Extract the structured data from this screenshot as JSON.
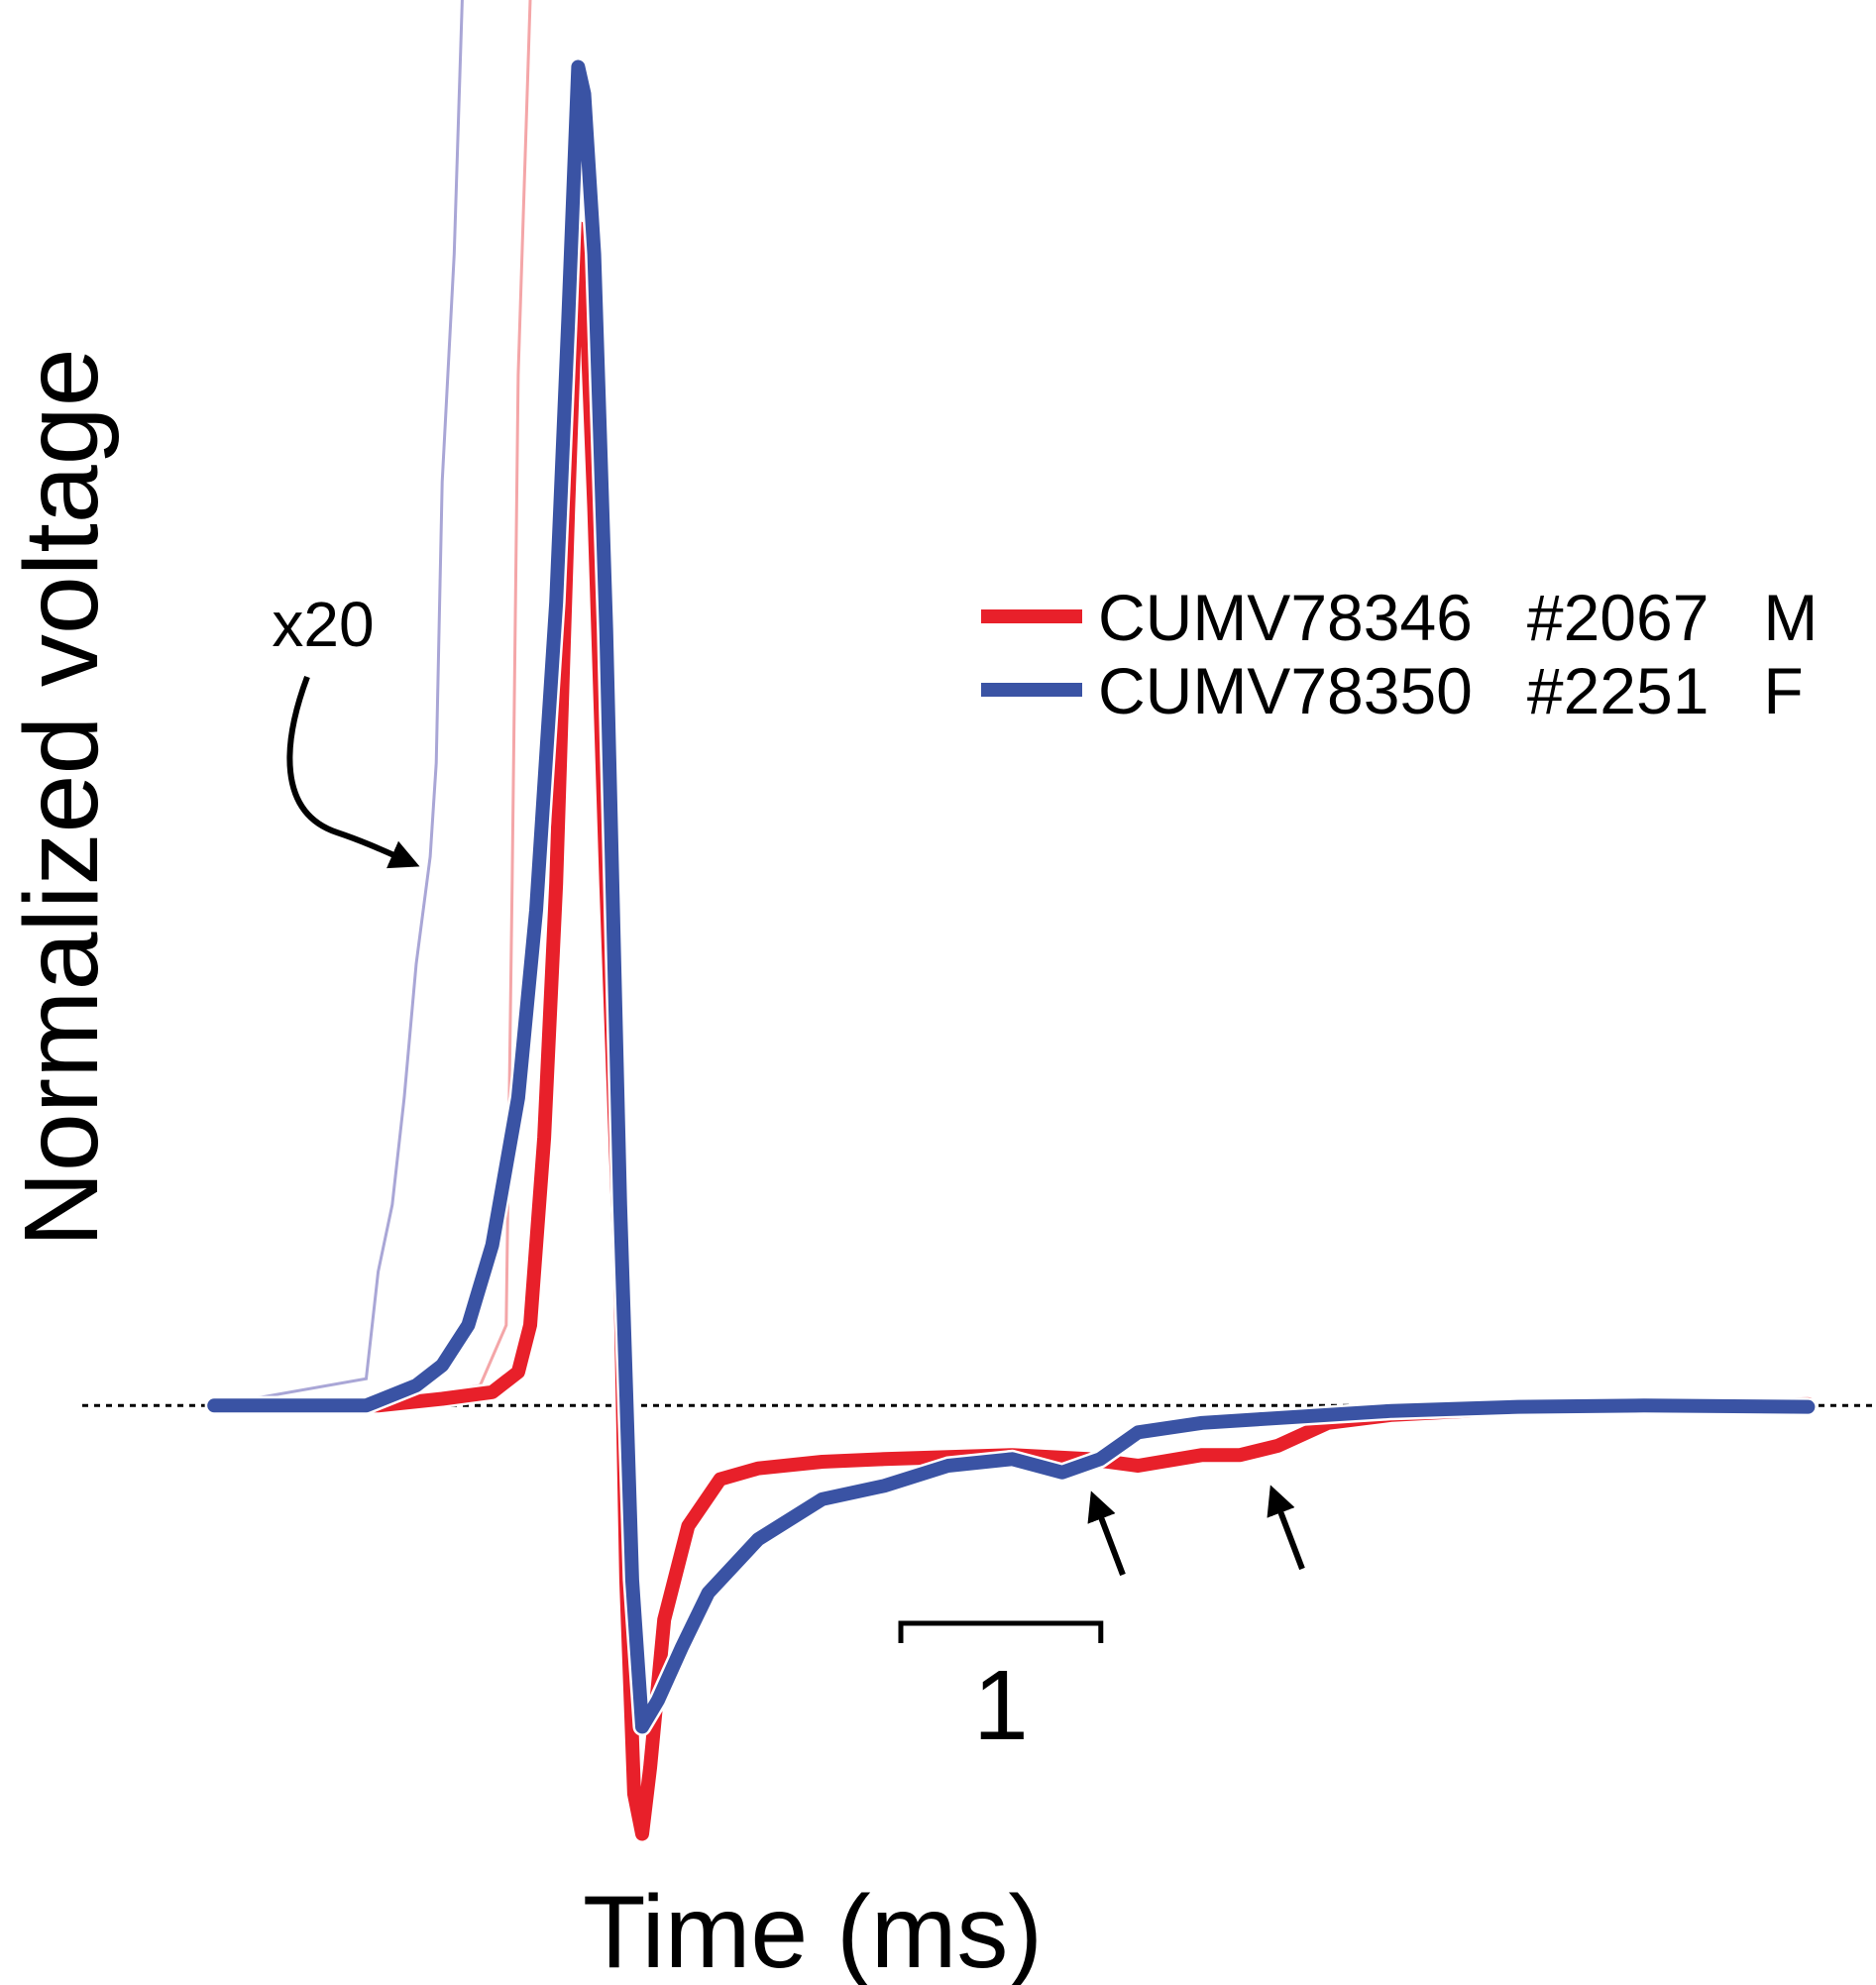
{
  "chart_data": {
    "type": "line",
    "xlabel": "Time (ms)",
    "ylabel": "Normalized voltage",
    "xlim": [
      -0.66,
      8.31
    ],
    "ylim": [
      -0.33,
      1.05
    ],
    "baseline": true,
    "annotation": "x20",
    "scale_bar": 1,
    "legend": "upper right",
    "series": [
      {
        "name": "CUMV78346   #2067   M",
        "color": "#e8202a",
        "x": [
          0,
          0.82,
          1.14,
          1.39,
          1.52,
          1.58,
          1.65,
          1.71,
          1.77,
          1.82,
          1.85,
          1.9,
          1.96,
          2.03,
          2.06,
          2.1,
          2.14,
          2.18,
          2.25,
          2.37,
          2.53,
          2.72,
          3.04,
          3.35,
          3.99,
          4.37,
          4.62,
          4.94,
          5.13,
          5.32,
          5.57,
          5.89,
          6.52,
          7.15,
          7.97
        ],
        "values": [
          0,
          0,
          0.005,
          0.01,
          0.025,
          0.06,
          0.2,
          0.39,
          0.67,
          0.88,
          0.86,
          0.67,
          0.39,
          0.1,
          -0.13,
          -0.29,
          -0.32,
          -0.27,
          -0.16,
          -0.09,
          -0.055,
          -0.047,
          -0.042,
          -0.04,
          -0.037,
          -0.04,
          -0.045,
          -0.037,
          -0.037,
          -0.03,
          -0.013,
          -0.007,
          -0.002,
          -0.001,
          0.001
        ]
      },
      {
        "name": "CUMV78350   #2251   F",
        "color": "#3a53a4",
        "x": [
          0,
          0.76,
          1.01,
          1.14,
          1.27,
          1.39,
          1.52,
          1.61,
          1.71,
          1.77,
          1.82,
          1.85,
          1.9,
          1.96,
          2.03,
          2.06,
          2.09,
          2.14,
          2.22,
          2.34,
          2.47,
          2.72,
          3.04,
          3.35,
          3.67,
          3.99,
          4.24,
          4.43,
          4.62,
          4.94,
          5.25,
          5.89,
          6.52,
          7.15,
          7.97
        ],
        "values": [
          0,
          0,
          0.015,
          0.03,
          0.06,
          0.12,
          0.23,
          0.37,
          0.6,
          0.81,
          1,
          0.98,
          0.86,
          0.58,
          0.15,
          0.01,
          -0.13,
          -0.24,
          -0.22,
          -0.18,
          -0.14,
          -0.1,
          -0.07,
          -0.06,
          -0.045,
          -0.04,
          -0.05,
          -0.04,
          -0.02,
          -0.013,
          -0.01,
          -0.004,
          -0.001,
          0,
          -0.001
        ]
      }
    ],
    "traces_x20": [
      {
        "color": "#f4a6a8",
        "x": [
          0,
          0.76,
          1.33,
          1.46,
          1.49,
          1.52,
          1.58
        ],
        "values": [
          0,
          0,
          0.015,
          0.06,
          0.39,
          0.77,
          1.05
        ]
      },
      {
        "color": "#a9a6d6",
        "x": [
          0,
          0.76,
          0.82,
          0.89,
          0.95,
          1.01,
          1.08,
          1.11,
          1.14,
          1.2,
          1.24
        ],
        "values": [
          0,
          0.02,
          0.1,
          0.15,
          0.23,
          0.33,
          0.41,
          0.48,
          0.69,
          0.86,
          1.05
        ]
      }
    ]
  }
}
